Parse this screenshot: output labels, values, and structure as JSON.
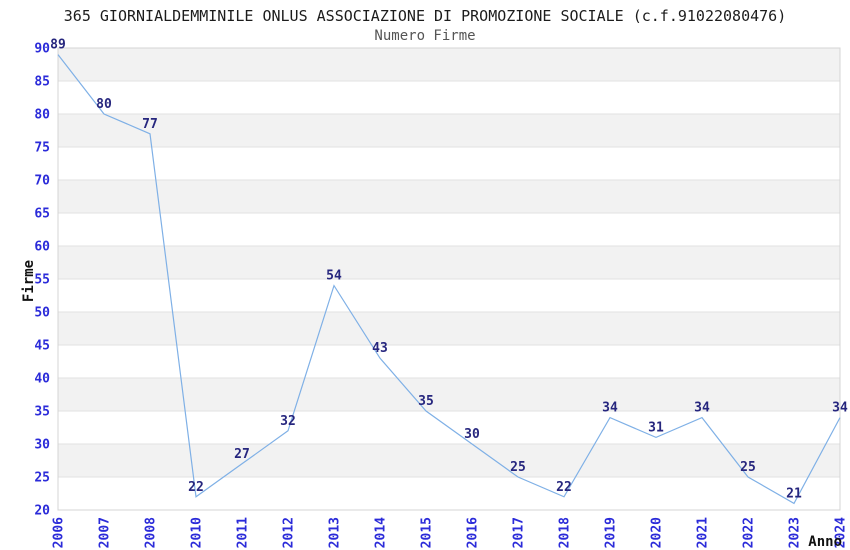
{
  "chart_data": {
    "type": "line",
    "title": "365 GIORNIALDEMMINILE ONLUS ASSOCIAZIONE DI PROMOZIONE SOCIALE (c.f.91022080476)",
    "subtitle": "Numero Firme",
    "xlabel": "Anno",
    "ylabel": "Firme",
    "categories": [
      "2006",
      "2007",
      "2008",
      "2010",
      "2011",
      "2012",
      "2013",
      "2014",
      "2015",
      "2016",
      "2017",
      "2018",
      "2019",
      "2020",
      "2021",
      "2022",
      "2023",
      "2024"
    ],
    "values": [
      89,
      80,
      77,
      22,
      27,
      32,
      54,
      43,
      35,
      30,
      25,
      22,
      34,
      31,
      34,
      25,
      21,
      34
    ],
    "ylim": [
      20,
      90
    ],
    "ytick_step": 5,
    "grid": true,
    "legend_position": "none",
    "point_labels": true,
    "band_pattern": "alternating-horizontal"
  },
  "colors": {
    "line": "#7fb0e6",
    "point_label": "#26267e",
    "tick_label": "#2b2bd9",
    "band": "#f2f2f2",
    "band_alt": "#ffffff",
    "gridline": "#e2e2e2",
    "plot_border": "#d4d4d4",
    "title": "#1c1c1c",
    "subtitle": "#555555",
    "axis_title": "#111111"
  }
}
